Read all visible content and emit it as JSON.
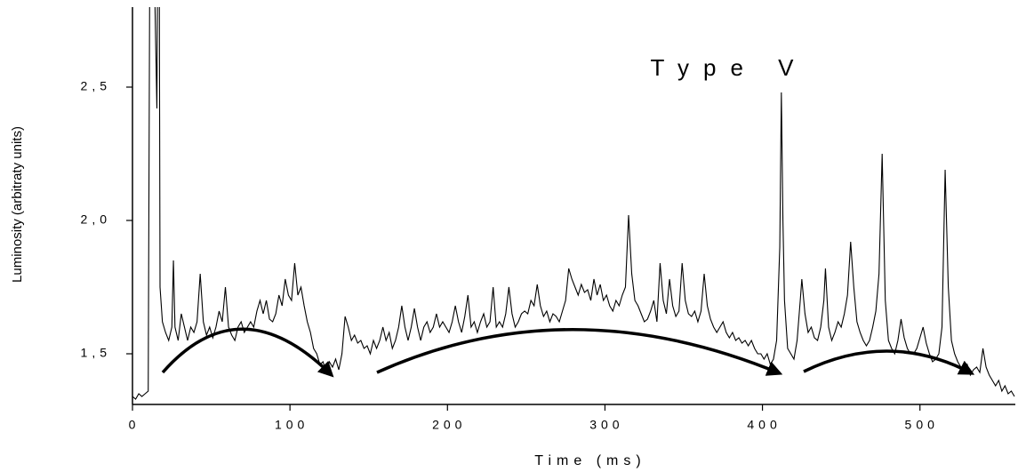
{
  "chart_data": {
    "type": "line",
    "title": "Type V",
    "x_label": "Time (ms)",
    "y_label": "Luminosity (arbitraty units)",
    "xlim": [
      0,
      560
    ],
    "ylim": [
      1.31,
      2.8
    ],
    "xticks": [
      0,
      100,
      200,
      300,
      400,
      500
    ],
    "yticks": [
      {
        "value": 1.5,
        "label": "1,5"
      },
      {
        "value": 2.0,
        "label": "2,0"
      },
      {
        "value": 2.5,
        "label": "2,5"
      }
    ],
    "color": "#000000",
    "x": [
      0,
      2,
      4,
      6,
      8,
      10,
      11,
      13,
      14,
      15.5,
      16,
      17,
      17.5,
      19,
      21,
      23,
      25,
      26,
      27,
      29,
      31,
      33,
      35,
      37,
      39,
      41,
      43,
      45,
      47,
      49,
      51,
      53,
      55,
      57,
      59,
      61,
      63,
      65,
      67,
      69,
      71,
      73,
      75,
      77,
      79,
      81,
      83,
      85,
      87,
      89,
      91,
      93,
      95,
      97,
      99,
      101,
      103,
      105,
      107,
      109,
      111,
      113,
      115,
      117,
      119,
      121,
      123,
      125,
      127,
      129,
      131,
      133,
      135,
      137,
      139,
      141,
      143,
      145,
      147,
      149,
      151,
      153,
      155,
      157,
      159,
      161,
      163,
      165,
      167,
      169,
      171,
      173,
      175,
      177,
      179,
      181,
      183,
      185,
      187,
      189,
      191,
      193,
      195,
      197,
      199,
      201,
      203,
      205,
      207,
      209,
      211,
      213,
      215,
      217,
      219,
      221,
      223,
      225,
      227,
      229,
      231,
      233,
      235,
      237,
      239,
      241,
      243,
      245,
      247,
      249,
      251,
      253,
      255,
      257,
      259,
      261,
      263,
      265,
      267,
      269,
      271,
      273,
      275,
      277,
      279,
      281,
      283,
      285,
      287,
      289,
      291,
      293,
      295,
      297,
      299,
      301,
      303,
      305,
      307,
      309,
      311,
      313,
      315,
      317,
      319,
      321,
      323,
      325,
      327,
      329,
      331,
      333,
      335,
      337,
      339,
      341,
      343,
      345,
      347,
      349,
      351,
      353,
      355,
      357,
      359,
      361,
      363,
      365,
      367,
      369,
      371,
      373,
      375,
      377,
      379,
      381,
      383,
      385,
      387,
      389,
      391,
      393,
      395,
      397,
      399,
      401,
      403,
      405,
      407,
      409,
      411,
      412,
      413,
      414,
      416,
      418,
      420,
      422,
      424,
      425,
      427,
      429,
      431,
      433,
      435,
      437,
      439,
      440,
      442,
      444,
      446,
      448,
      450,
      452,
      454,
      456,
      458,
      460,
      462,
      464,
      466,
      468,
      470,
      472,
      474,
      476,
      478,
      480,
      482,
      484,
      486,
      488,
      490,
      492,
      494,
      496,
      498,
      500,
      502,
      504,
      506,
      508,
      510,
      512,
      514,
      516,
      518,
      520,
      522,
      524,
      526,
      528,
      530,
      532,
      534,
      536,
      538,
      540,
      542,
      544,
      546,
      548,
      550,
      552,
      554,
      556,
      558,
      560
    ],
    "values": [
      1.34,
      1.33,
      1.35,
      1.34,
      1.35,
      1.36,
      3.0,
      3.0,
      2.9,
      2.42,
      3.0,
      3.0,
      1.75,
      1.62,
      1.58,
      1.55,
      1.6,
      1.85,
      1.6,
      1.55,
      1.65,
      1.6,
      1.55,
      1.6,
      1.58,
      1.62,
      1.8,
      1.62,
      1.57,
      1.6,
      1.56,
      1.6,
      1.66,
      1.62,
      1.75,
      1.6,
      1.57,
      1.55,
      1.6,
      1.62,
      1.58,
      1.6,
      1.62,
      1.6,
      1.66,
      1.7,
      1.65,
      1.7,
      1.63,
      1.62,
      1.65,
      1.72,
      1.68,
      1.78,
      1.72,
      1.7,
      1.84,
      1.72,
      1.75,
      1.68,
      1.62,
      1.58,
      1.52,
      1.5,
      1.46,
      1.47,
      1.43,
      1.47,
      1.45,
      1.48,
      1.44,
      1.5,
      1.64,
      1.6,
      1.55,
      1.57,
      1.54,
      1.55,
      1.52,
      1.53,
      1.5,
      1.55,
      1.52,
      1.55,
      1.6,
      1.55,
      1.58,
      1.52,
      1.55,
      1.6,
      1.68,
      1.6,
      1.55,
      1.6,
      1.67,
      1.6,
      1.55,
      1.6,
      1.62,
      1.58,
      1.6,
      1.65,
      1.6,
      1.62,
      1.6,
      1.58,
      1.62,
      1.68,
      1.62,
      1.58,
      1.64,
      1.72,
      1.6,
      1.62,
      1.58,
      1.62,
      1.65,
      1.6,
      1.62,
      1.75,
      1.6,
      1.62,
      1.6,
      1.65,
      1.75,
      1.65,
      1.6,
      1.62,
      1.65,
      1.66,
      1.65,
      1.7,
      1.68,
      1.76,
      1.68,
      1.64,
      1.66,
      1.62,
      1.65,
      1.64,
      1.62,
      1.66,
      1.7,
      1.82,
      1.78,
      1.75,
      1.72,
      1.76,
      1.73,
      1.74,
      1.7,
      1.78,
      1.72,
      1.76,
      1.7,
      1.72,
      1.68,
      1.66,
      1.7,
      1.68,
      1.72,
      1.75,
      2.02,
      1.8,
      1.7,
      1.68,
      1.65,
      1.62,
      1.63,
      1.66,
      1.7,
      1.62,
      1.84,
      1.7,
      1.65,
      1.78,
      1.68,
      1.64,
      1.66,
      1.84,
      1.7,
      1.65,
      1.64,
      1.66,
      1.62,
      1.66,
      1.8,
      1.68,
      1.63,
      1.6,
      1.58,
      1.6,
      1.62,
      1.58,
      1.56,
      1.58,
      1.55,
      1.56,
      1.54,
      1.55,
      1.53,
      1.55,
      1.52,
      1.5,
      1.5,
      1.48,
      1.5,
      1.46,
      1.48,
      1.55,
      1.9,
      2.48,
      2.0,
      1.7,
      1.52,
      1.5,
      1.48,
      1.55,
      1.7,
      1.78,
      1.65,
      1.58,
      1.6,
      1.56,
      1.55,
      1.6,
      1.7,
      1.82,
      1.6,
      1.55,
      1.58,
      1.62,
      1.6,
      1.65,
      1.72,
      1.92,
      1.75,
      1.62,
      1.58,
      1.55,
      1.53,
      1.55,
      1.6,
      1.66,
      1.8,
      2.25,
      1.7,
      1.55,
      1.52,
      1.5,
      1.55,
      1.63,
      1.56,
      1.52,
      1.5,
      1.5,
      1.52,
      1.56,
      1.6,
      1.54,
      1.5,
      1.47,
      1.48,
      1.5,
      1.6,
      2.19,
      1.75,
      1.55,
      1.5,
      1.47,
      1.45,
      1.44,
      1.46,
      1.42,
      1.44,
      1.45,
      1.43,
      1.52,
      1.45,
      1.42,
      1.4,
      1.38,
      1.4,
      1.36,
      1.38,
      1.35,
      1.36,
      1.34
    ]
  }
}
